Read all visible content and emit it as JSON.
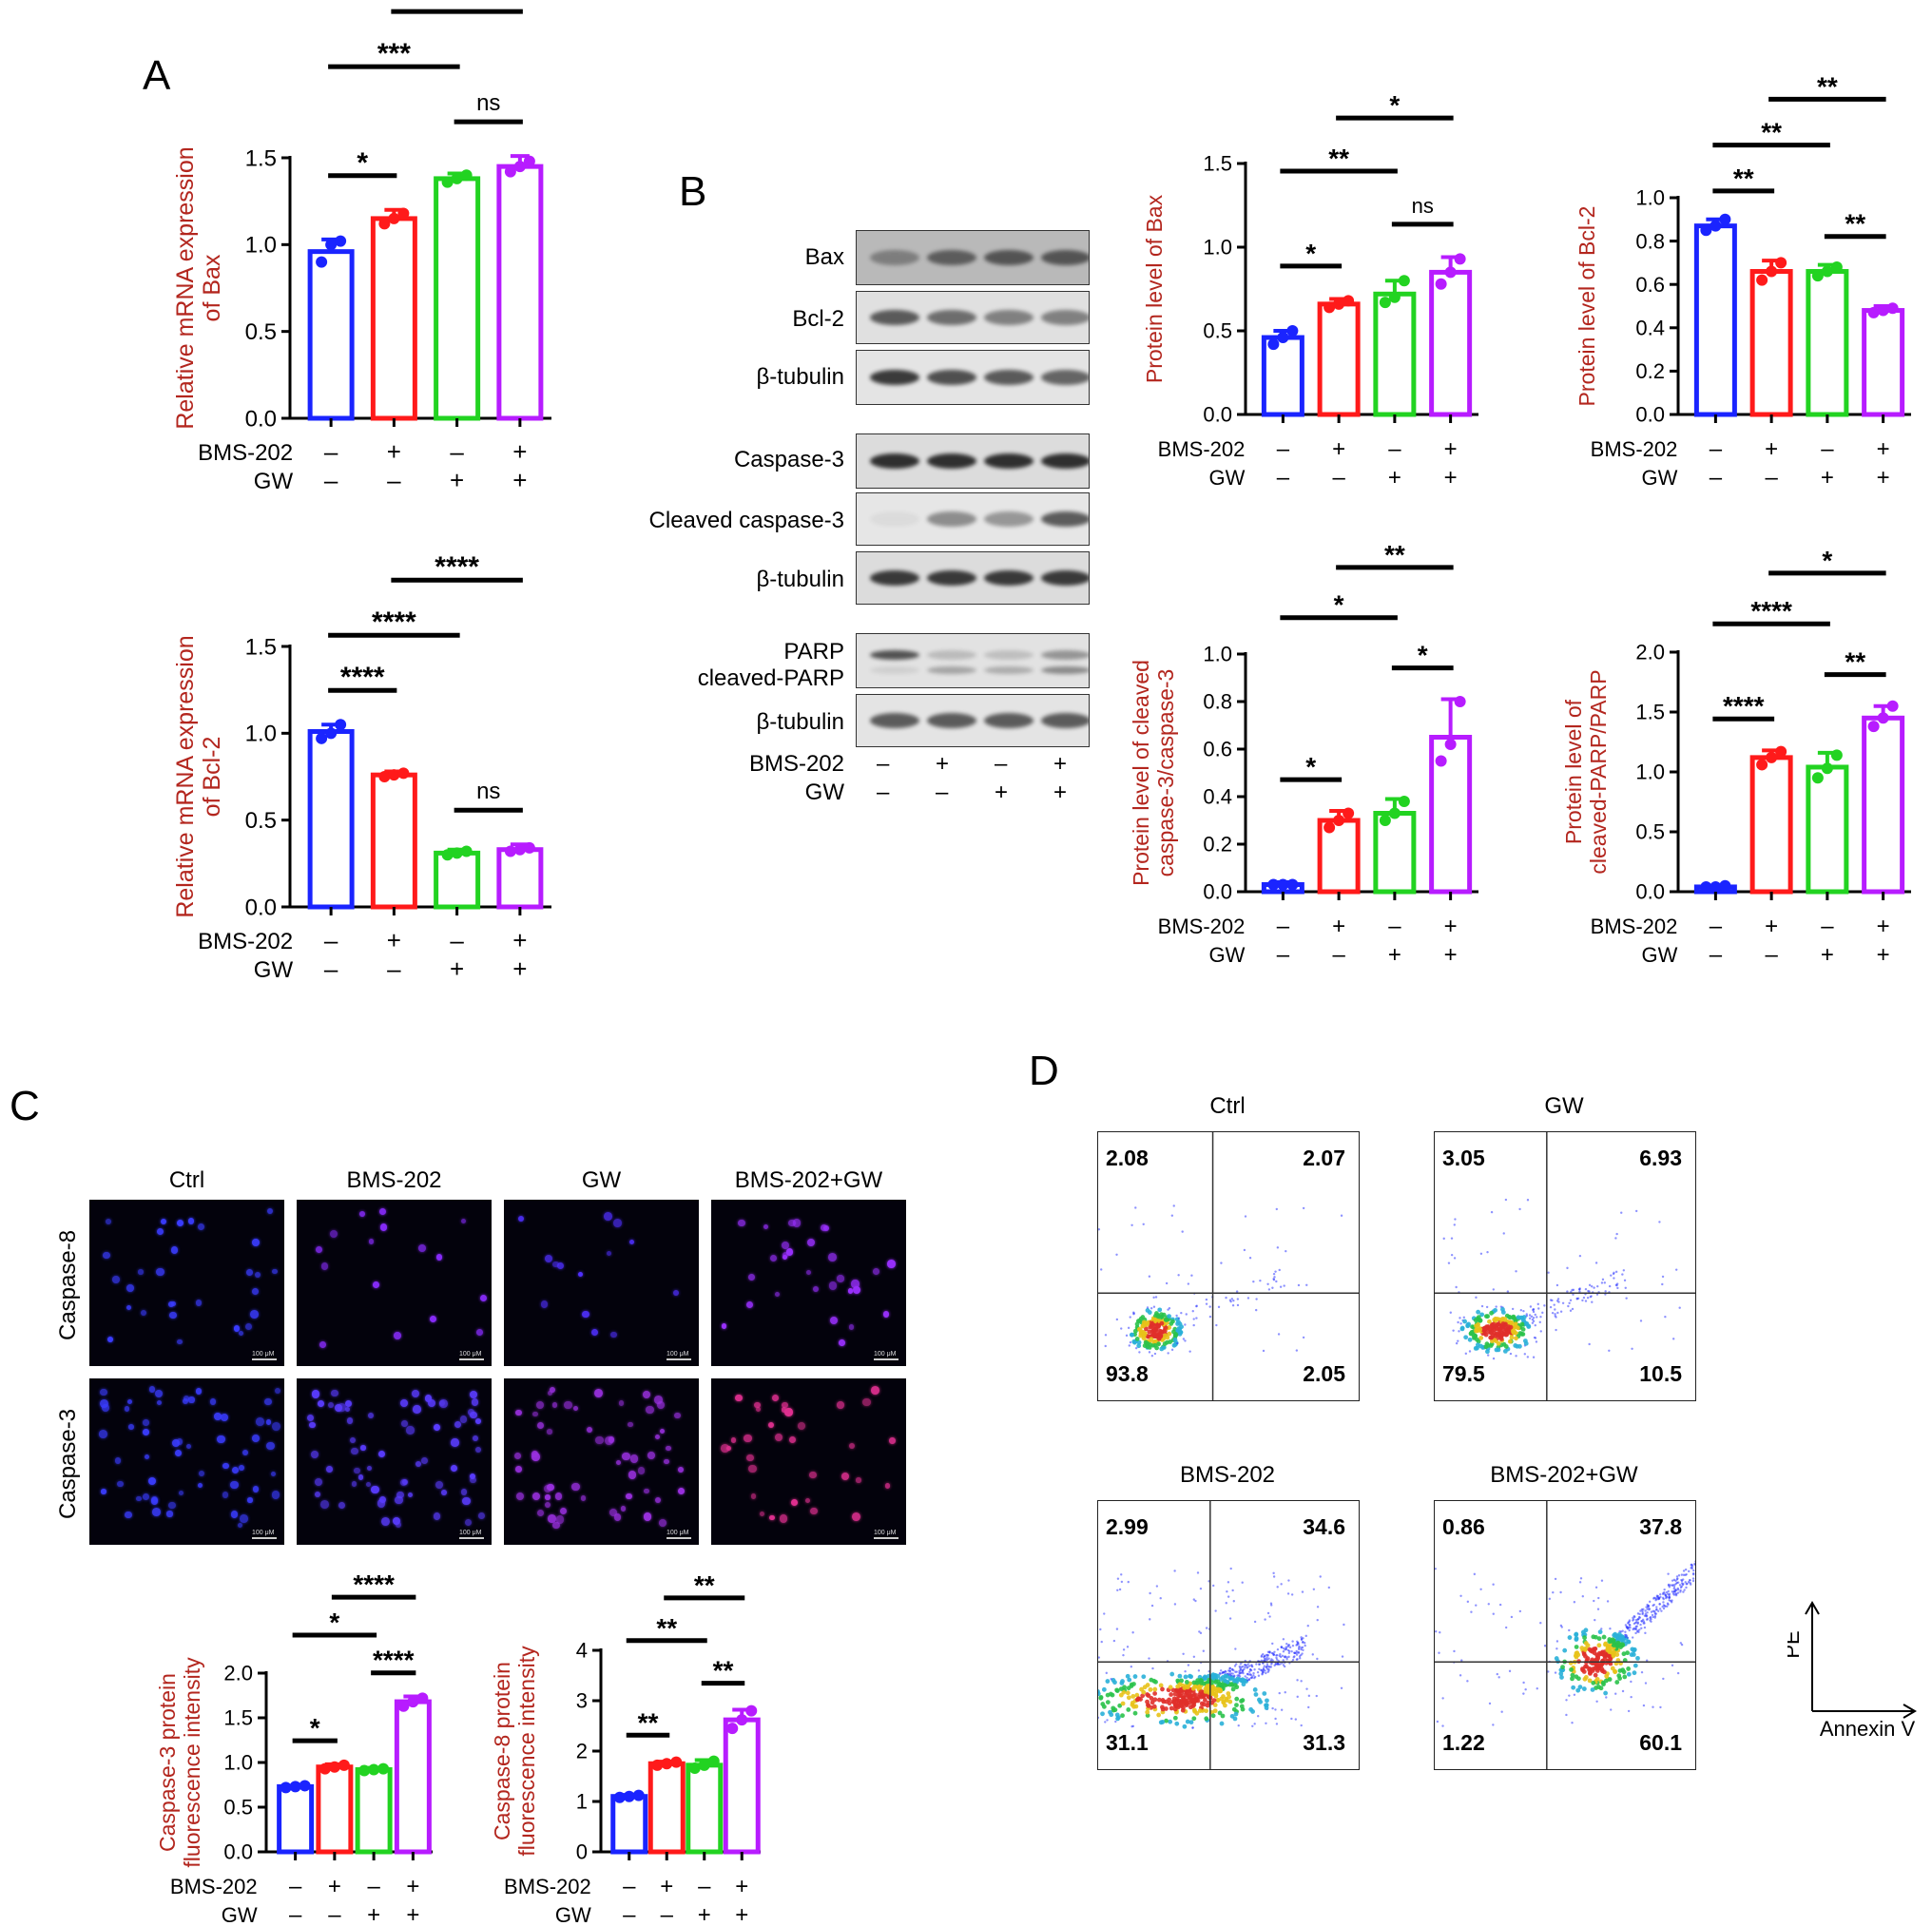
{
  "colors": {
    "blue": "#1a24ff",
    "red": "#ff1a1a",
    "green": "#22d321",
    "purple": "#b71cff",
    "axis_label": "#b3261e"
  },
  "panels": {
    "A": "A",
    "B": "B",
    "C": "C",
    "D": "D"
  },
  "treatment_rows": {
    "bms_label": "BMS-202",
    "gw_label": "GW",
    "bms": [
      "–",
      "+",
      "–",
      "+"
    ],
    "gw": [
      "–",
      "–",
      "+",
      "+"
    ]
  },
  "western_blot": {
    "bands": [
      "Bax",
      "Bcl-2",
      "β-tubulin",
      "Caspase-3",
      "Cleaved caspase-3",
      "β-tubulin",
      "PARP",
      "cleaved-PARP",
      "β-tubulin"
    ]
  },
  "microscopy": {
    "conditions": [
      "Ctrl",
      "BMS-202",
      "GW",
      "BMS-202+GW"
    ],
    "rows": [
      "Caspase-8",
      "Caspase-3"
    ],
    "scale_bar": "100 μM"
  },
  "flow_cytometry": {
    "x_axis": "Annexin V",
    "y_axis": "PE",
    "plots": [
      {
        "title": "Ctrl",
        "q": [
          "2.08",
          "2.07",
          "93.8",
          "2.05"
        ]
      },
      {
        "title": "GW",
        "q": [
          "3.05",
          "6.93",
          "79.5",
          "10.5"
        ]
      },
      {
        "title": "BMS-202",
        "q": [
          "2.99",
          "34.6",
          "31.1",
          "31.3"
        ]
      },
      {
        "title": "BMS-202+GW",
        "q": [
          "0.86",
          "37.8",
          "1.22",
          "60.1"
        ]
      }
    ]
  },
  "chart_data": [
    {
      "id": "A1",
      "type": "bar",
      "ylabel": [
        "Relative mRNA expression",
        "of Bax"
      ],
      "ylim": [
        0,
        1.5
      ],
      "yticks": [
        "0.0",
        "0.5",
        "1.0",
        "1.5"
      ],
      "values": [
        0.96,
        1.15,
        1.38,
        1.45
      ],
      "errors": [
        0.07,
        0.05,
        0.03,
        0.06
      ],
      "points": [
        [
          0.9,
          1.0,
          1.02
        ],
        [
          1.12,
          1.15,
          1.18
        ],
        [
          1.36,
          1.38,
          1.4
        ],
        [
          1.42,
          1.45,
          1.48
        ]
      ],
      "sig": [
        {
          "a": 0,
          "b": 1,
          "t": "*"
        },
        {
          "a": 2,
          "b": 3,
          "t": "ns"
        },
        {
          "a": 0,
          "b": 2,
          "t": "***"
        },
        {
          "a": 1,
          "b": 3,
          "t": "**"
        }
      ]
    },
    {
      "id": "A2",
      "type": "bar",
      "ylabel": [
        "Relative mRNA expression",
        "of Bcl-2"
      ],
      "ylim": [
        0,
        1.5
      ],
      "yticks": [
        "0.0",
        "0.5",
        "1.0",
        "1.5"
      ],
      "values": [
        1.01,
        0.76,
        0.31,
        0.33
      ],
      "errors": [
        0.04,
        0.02,
        0.02,
        0.03
      ],
      "points": [
        [
          0.97,
          1.0,
          1.05
        ],
        [
          0.75,
          0.76,
          0.77
        ],
        [
          0.3,
          0.31,
          0.32
        ],
        [
          0.32,
          0.33,
          0.34
        ]
      ],
      "sig": [
        {
          "a": 0,
          "b": 1,
          "t": "****"
        },
        {
          "a": 2,
          "b": 3,
          "t": "ns"
        },
        {
          "a": 0,
          "b": 2,
          "t": "****"
        },
        {
          "a": 1,
          "b": 3,
          "t": "****"
        }
      ]
    },
    {
      "id": "B1",
      "type": "bar",
      "ylabel": [
        "Protein level of Bax"
      ],
      "ylim": [
        0,
        1.5
      ],
      "yticks": [
        "0.0",
        "0.5",
        "1.0",
        "1.5"
      ],
      "values": [
        0.46,
        0.66,
        0.72,
        0.85
      ],
      "errors": [
        0.04,
        0.03,
        0.08,
        0.09
      ],
      "points": [
        [
          0.42,
          0.46,
          0.5
        ],
        [
          0.64,
          0.66,
          0.68
        ],
        [
          0.67,
          0.7,
          0.8
        ],
        [
          0.78,
          0.85,
          0.93
        ]
      ],
      "sig": [
        {
          "a": 0,
          "b": 1,
          "t": "*"
        },
        {
          "a": 2,
          "b": 3,
          "t": "ns"
        },
        {
          "a": 0,
          "b": 2,
          "t": "**"
        },
        {
          "a": 1,
          "b": 3,
          "t": "*"
        }
      ]
    },
    {
      "id": "B2",
      "type": "bar",
      "ylabel": [
        "Protein level of Bcl-2"
      ],
      "ylim": [
        0,
        1.0
      ],
      "yticks": [
        "0.0",
        "0.2",
        "0.4",
        "0.6",
        "0.8",
        "1.0"
      ],
      "values": [
        0.87,
        0.66,
        0.66,
        0.48
      ],
      "errors": [
        0.03,
        0.05,
        0.03,
        0.02
      ],
      "points": [
        [
          0.85,
          0.87,
          0.9
        ],
        [
          0.62,
          0.66,
          0.7
        ],
        [
          0.64,
          0.66,
          0.68
        ],
        [
          0.47,
          0.48,
          0.49
        ]
      ],
      "sig": [
        {
          "a": 0,
          "b": 1,
          "t": "**"
        },
        {
          "a": 2,
          "b": 3,
          "t": "**"
        },
        {
          "a": 0,
          "b": 2,
          "t": "**"
        },
        {
          "a": 1,
          "b": 3,
          "t": "**"
        }
      ]
    },
    {
      "id": "B3",
      "type": "bar",
      "ylabel": [
        "Protein level of cleaved",
        "caspase-3/caspase-3"
      ],
      "ylim": [
        0,
        1.0
      ],
      "yticks": [
        "0.0",
        "0.2",
        "0.4",
        "0.6",
        "0.8",
        "1.0"
      ],
      "values": [
        0.03,
        0.3,
        0.33,
        0.65
      ],
      "errors": [
        0.01,
        0.04,
        0.06,
        0.16
      ],
      "points": [
        [
          0.03,
          0.03,
          0.03
        ],
        [
          0.27,
          0.3,
          0.33
        ],
        [
          0.3,
          0.33,
          0.38
        ],
        [
          0.55,
          0.62,
          0.8
        ]
      ],
      "sig": [
        {
          "a": 0,
          "b": 1,
          "t": "*"
        },
        {
          "a": 2,
          "b": 3,
          "t": "*"
        },
        {
          "a": 0,
          "b": 2,
          "t": "*"
        },
        {
          "a": 1,
          "b": 3,
          "t": "**"
        }
      ]
    },
    {
      "id": "B4",
      "type": "bar",
      "ylabel": [
        "Protein level of",
        "cleaved-PARP/PARP"
      ],
      "ylim": [
        0,
        2.0
      ],
      "yticks": [
        "0.0",
        "0.5",
        "1.0",
        "1.5",
        "2.0"
      ],
      "values": [
        0.04,
        1.12,
        1.04,
        1.45
      ],
      "errors": [
        0.01,
        0.06,
        0.12,
        0.1
      ],
      "points": [
        [
          0.04,
          0.04,
          0.05
        ],
        [
          1.06,
          1.12,
          1.17
        ],
        [
          0.95,
          1.03,
          1.14
        ],
        [
          1.38,
          1.45,
          1.55
        ]
      ],
      "sig": [
        {
          "a": 0,
          "b": 1,
          "t": "****"
        },
        {
          "a": 2,
          "b": 3,
          "t": "**"
        },
        {
          "a": 0,
          "b": 2,
          "t": "****"
        },
        {
          "a": 1,
          "b": 3,
          "t": "*"
        }
      ]
    },
    {
      "id": "C1",
      "type": "bar",
      "ylabel": [
        "Caspase-3 protein",
        "fluorescence intensity"
      ],
      "ylim": [
        0,
        2.0
      ],
      "yticks": [
        "0.0",
        "0.5",
        "1.0",
        "1.5",
        "2.0"
      ],
      "values": [
        0.73,
        0.95,
        0.92,
        1.68
      ],
      "errors": [
        0.01,
        0.03,
        0.02,
        0.06
      ],
      "points": [
        [
          0.72,
          0.73,
          0.74
        ],
        [
          0.93,
          0.95,
          0.97
        ],
        [
          0.91,
          0.92,
          0.93
        ],
        [
          1.63,
          1.68,
          1.72
        ]
      ],
      "sig": [
        {
          "a": 0,
          "b": 1,
          "t": "*"
        },
        {
          "a": 2,
          "b": 3,
          "t": "****"
        },
        {
          "a": 0,
          "b": 2,
          "t": "*"
        },
        {
          "a": 1,
          "b": 3,
          "t": "****"
        }
      ]
    },
    {
      "id": "C2",
      "type": "bar",
      "ylabel": [
        "Caspase-8 protein",
        "fluorescence intensity"
      ],
      "ylim": [
        0,
        4
      ],
      "yticks": [
        "0",
        "1",
        "2",
        "3",
        "4"
      ],
      "values": [
        1.1,
        1.75,
        1.72,
        2.62
      ],
      "errors": [
        0.03,
        0.04,
        0.1,
        0.2
      ],
      "points": [
        [
          1.08,
          1.1,
          1.12
        ],
        [
          1.72,
          1.75,
          1.78
        ],
        [
          1.66,
          1.72,
          1.8
        ],
        [
          2.45,
          2.62,
          2.8
        ]
      ],
      "sig": [
        {
          "a": 0,
          "b": 1,
          "t": "**"
        },
        {
          "a": 2,
          "b": 3,
          "t": "**"
        },
        {
          "a": 0,
          "b": 2,
          "t": "**"
        },
        {
          "a": 1,
          "b": 3,
          "t": "**"
        }
      ]
    }
  ]
}
